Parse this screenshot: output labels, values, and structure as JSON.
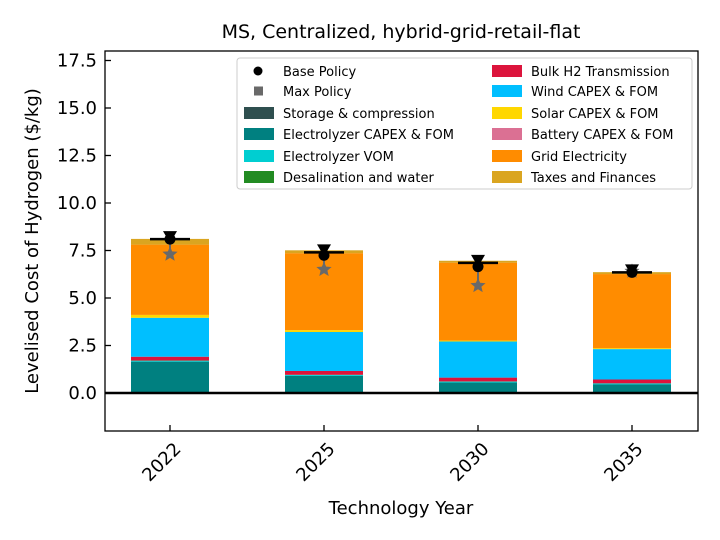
{
  "chart_data": {
    "type": "bar",
    "stacked": true,
    "title": "MS, Centralized, hybrid-grid-retail-flat",
    "xlabel": "Technology Year",
    "ylabel": "Levelised Cost of Hydrogen ($/kg)",
    "categories": [
      "2022",
      "2025",
      "2030",
      "2035"
    ],
    "ylim": [
      -2.0,
      18.0
    ],
    "yticks": [
      0.0,
      2.5,
      5.0,
      7.5,
      10.0,
      12.5,
      15.0,
      17.5
    ],
    "ytick_labels": [
      "0.0",
      "2.5",
      "5.0",
      "7.5",
      "10.0",
      "12.5",
      "15.0",
      "17.5"
    ],
    "grid": false,
    "legend_position": "top-right",
    "series": [
      {
        "name": "Storage & compression",
        "color": "#2f4f4f",
        "values": [
          0.05,
          0.05,
          0.05,
          0.05
        ]
      },
      {
        "name": "Electrolyzer CAPEX & FOM",
        "color": "#008080",
        "values": [
          1.6,
          0.85,
          0.5,
          0.4
        ]
      },
      {
        "name": "Electrolyzer VOM",
        "color": "#00ced1",
        "values": [
          0.05,
          0.05,
          0.05,
          0.05
        ]
      },
      {
        "name": "Desalination and water",
        "color": "#228b22",
        "values": [
          0.01,
          0.01,
          0.01,
          0.01
        ]
      },
      {
        "name": "Bulk H2 Transmission",
        "color": "#dc143c",
        "values": [
          0.2,
          0.2,
          0.2,
          0.2
        ]
      },
      {
        "name": "Wind CAPEX & FOM",
        "color": "#00bfff",
        "values": [
          2.05,
          2.05,
          1.9,
          1.6
        ]
      },
      {
        "name": "Solar CAPEX & FOM",
        "color": "#ffd700",
        "values": [
          0.15,
          0.1,
          0.05,
          0.05
        ]
      },
      {
        "name": "Battery CAPEX & FOM",
        "color": "#db7093",
        "values": [
          0.0,
          0.0,
          0.0,
          0.0
        ]
      },
      {
        "name": "Grid Electricity",
        "color": "#ff8c00",
        "values": [
          3.7,
          4.05,
          4.1,
          3.9
        ]
      },
      {
        "name": "Taxes and Finances",
        "color": "#daa520",
        "values": [
          0.3,
          0.15,
          0.1,
          0.1
        ]
      }
    ],
    "points": [
      {
        "name": "Base Policy",
        "marker": "circle",
        "color": "#000000",
        "values": [
          8.1,
          7.25,
          6.65,
          6.35
        ]
      },
      {
        "name": "Max Policy",
        "marker": "square",
        "color": "#696969",
        "values": [
          7.3,
          6.5,
          5.65,
          6.4
        ]
      }
    ],
    "errorbar_caps": [
      8.1,
      7.4,
      6.85,
      6.35
    ]
  }
}
